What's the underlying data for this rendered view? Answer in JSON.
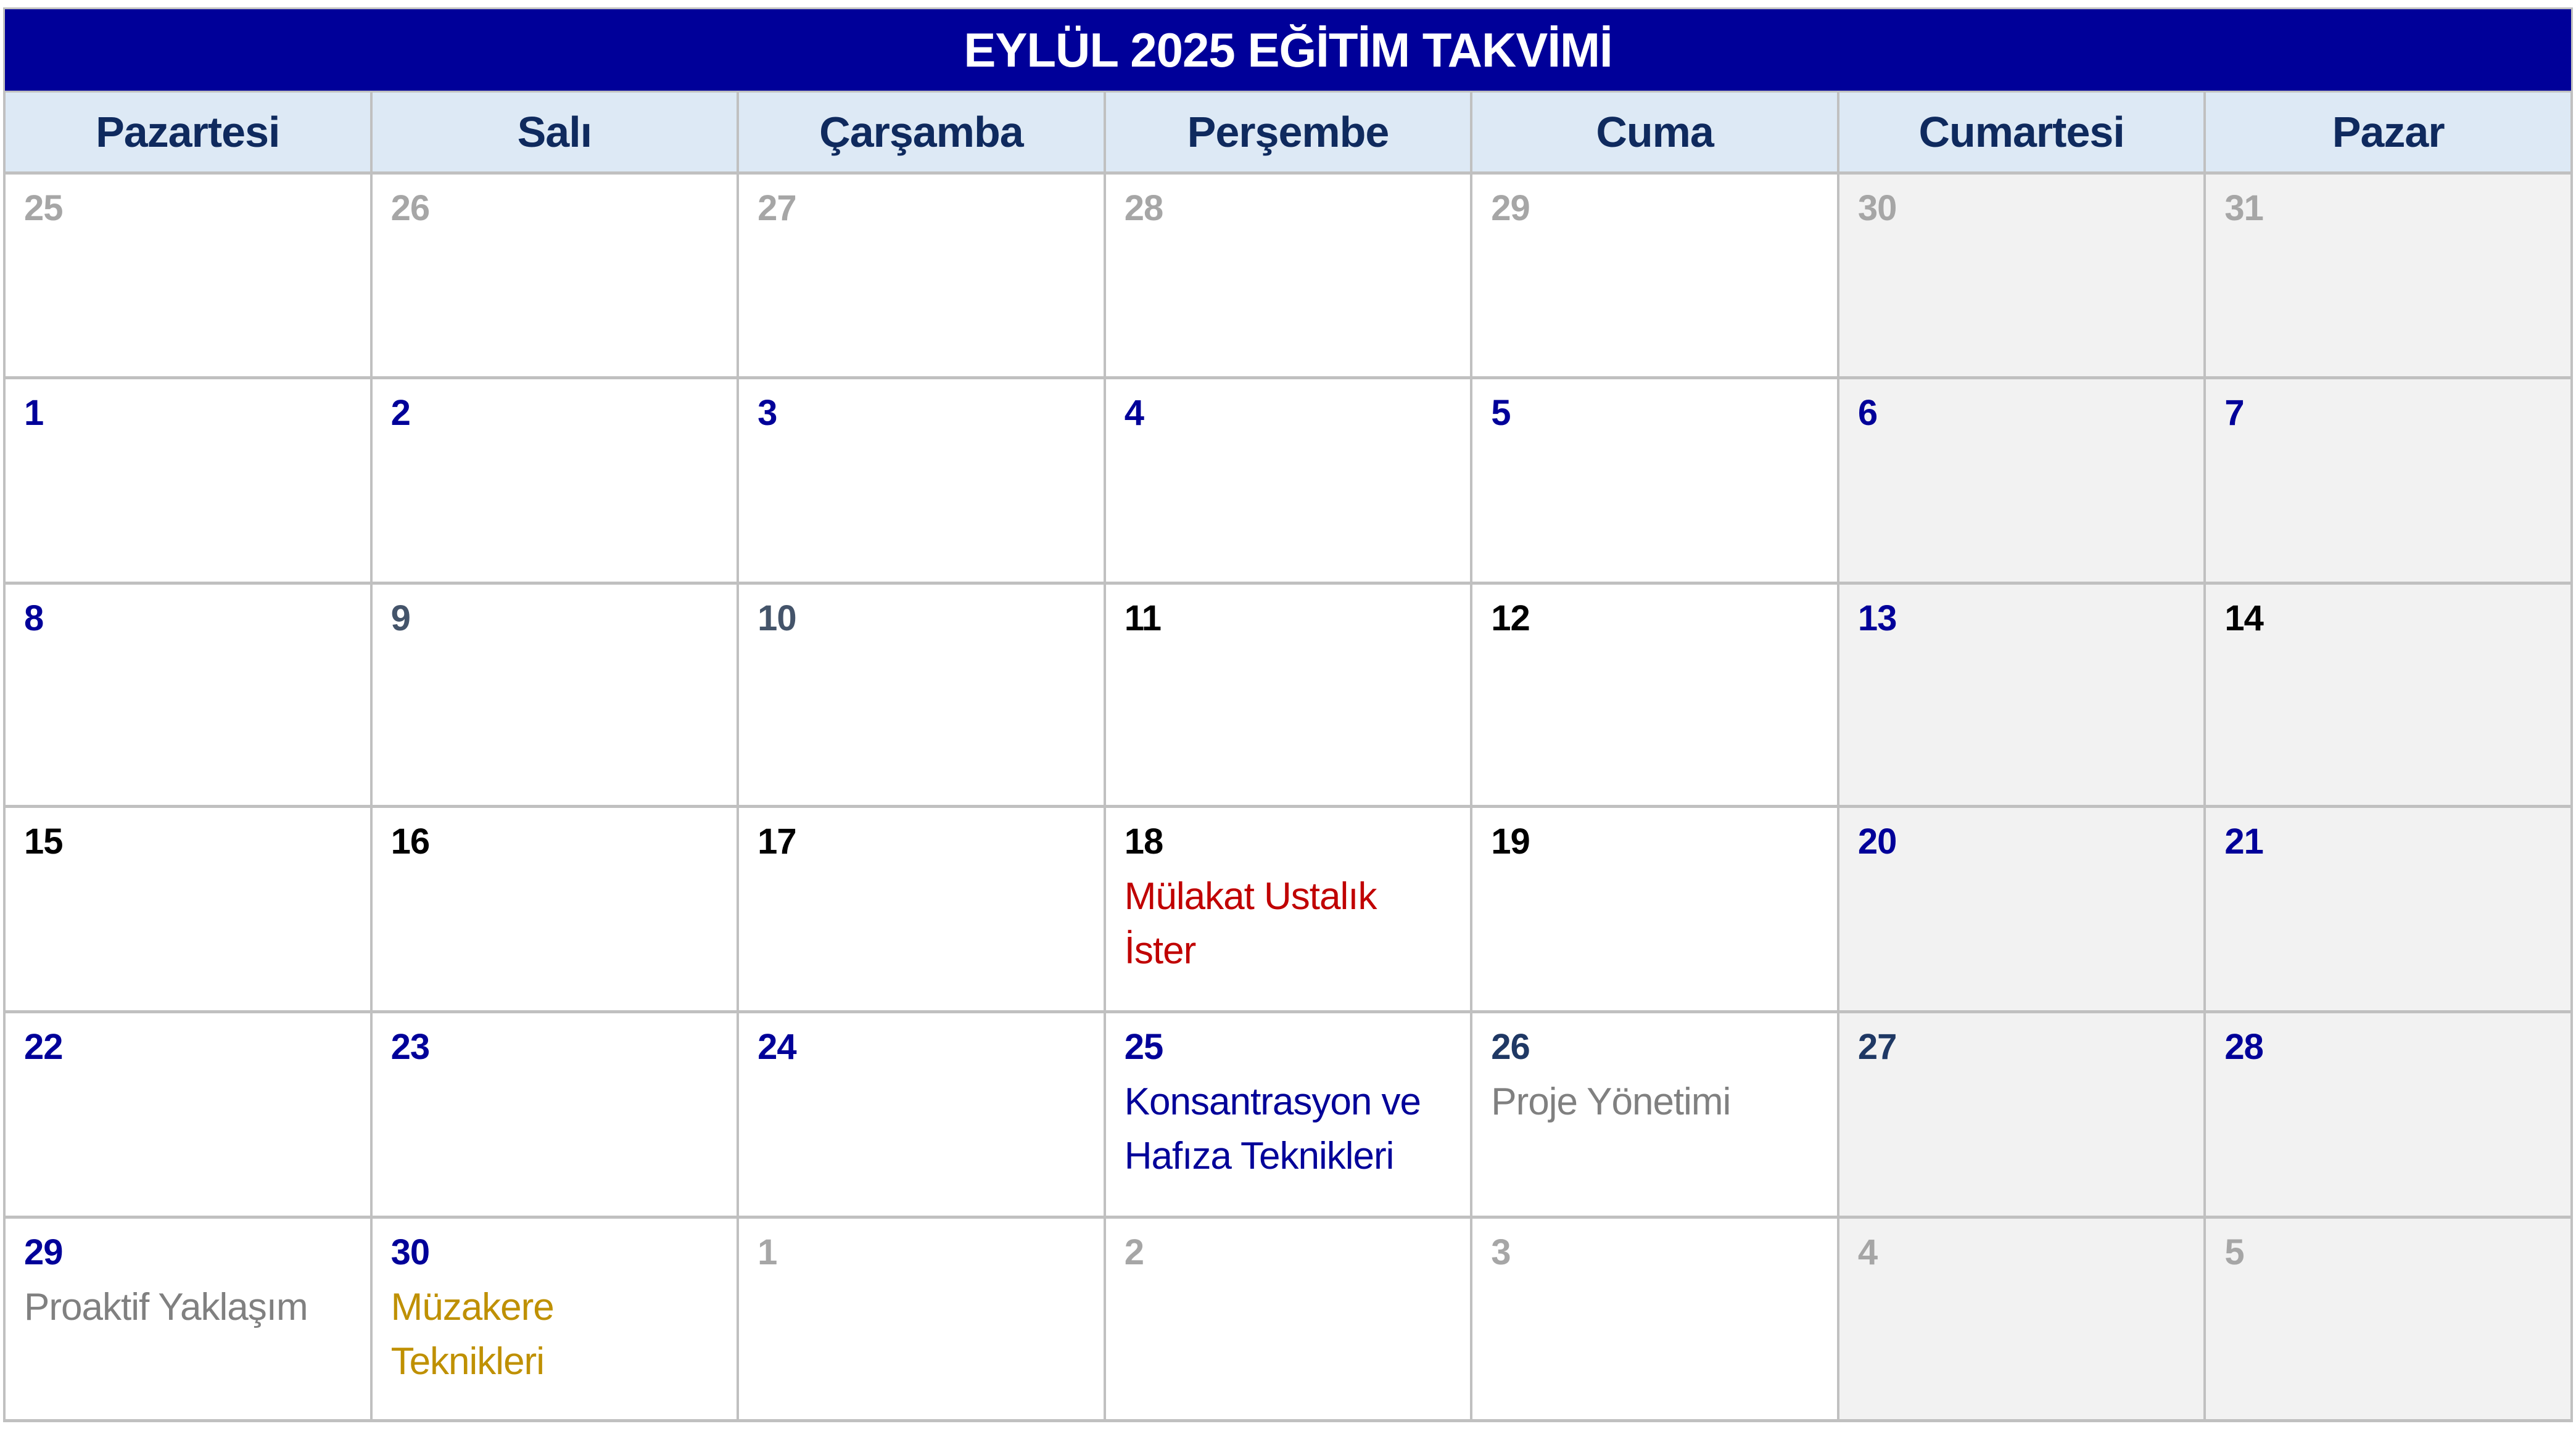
{
  "title": "EYLÜL 2025 EĞİTİM TAKVİMİ",
  "colors": {
    "title_bg": "#000099",
    "header_bg": "#dde9f5",
    "weekend_bg": "#f2f2f2"
  },
  "weekdays": [
    "Pazartesi",
    "Salı",
    "Çarşamba",
    "Perşembe",
    "Cuma",
    "Cumartesi",
    "Pazar"
  ],
  "weeks": [
    [
      {
        "day": "25",
        "color": "#a6a6a6"
      },
      {
        "day": "26",
        "color": "#a6a6a6"
      },
      {
        "day": "27",
        "color": "#a6a6a6"
      },
      {
        "day": "28",
        "color": "#a6a6a6"
      },
      {
        "day": "29",
        "color": "#a6a6a6"
      },
      {
        "day": "30",
        "color": "#a6a6a6"
      },
      {
        "day": "31",
        "color": "#a6a6a6"
      }
    ],
    [
      {
        "day": "1",
        "color": "#000099"
      },
      {
        "day": "2",
        "color": "#000099"
      },
      {
        "day": "3",
        "color": "#000099"
      },
      {
        "day": "4",
        "color": "#000099"
      },
      {
        "day": "5",
        "color": "#000099"
      },
      {
        "day": "6",
        "color": "#000099"
      },
      {
        "day": "7",
        "color": "#000099"
      }
    ],
    [
      {
        "day": "8",
        "color": "#000099"
      },
      {
        "day": "9",
        "color": "#44546a"
      },
      {
        "day": "10",
        "color": "#44546a"
      },
      {
        "day": "11",
        "color": "#000000"
      },
      {
        "day": "12",
        "color": "#000000"
      },
      {
        "day": "13",
        "color": "#000099"
      },
      {
        "day": "14",
        "color": "#000000"
      }
    ],
    [
      {
        "day": "15",
        "color": "#000000"
      },
      {
        "day": "16",
        "color": "#000000"
      },
      {
        "day": "17",
        "color": "#000000"
      },
      {
        "day": "18",
        "color": "#000000",
        "event": "Mülakat Ustalık İster",
        "event_color": "#c00000"
      },
      {
        "day": "19",
        "color": "#000000"
      },
      {
        "day": "20",
        "color": "#000099"
      },
      {
        "day": "21",
        "color": "#000099"
      }
    ],
    [
      {
        "day": "22",
        "color": "#000099"
      },
      {
        "day": "23",
        "color": "#000099"
      },
      {
        "day": "24",
        "color": "#000099"
      },
      {
        "day": "25",
        "color": "#000099",
        "event": "Konsantrasyon ve Hafıza Teknikleri",
        "event_color": "#000099"
      },
      {
        "day": "26",
        "color": "#1f3864",
        "event": "Proje Yönetimi",
        "event_color": "#808080"
      },
      {
        "day": "27",
        "color": "#1f3864"
      },
      {
        "day": "28",
        "color": "#000099"
      }
    ],
    [
      {
        "day": "29",
        "color": "#000099",
        "event": "Proaktif Yaklaşım",
        "event_color": "#808080"
      },
      {
        "day": "30",
        "color": "#000099",
        "event": "Müzakere Teknikleri",
        "event_color": "#bf9000"
      },
      {
        "day": "1",
        "color": "#a6a6a6"
      },
      {
        "day": "2",
        "color": "#a6a6a6"
      },
      {
        "day": "3",
        "color": "#a6a6a6"
      },
      {
        "day": "4",
        "color": "#a6a6a6"
      },
      {
        "day": "5",
        "color": "#a6a6a6"
      }
    ]
  ]
}
